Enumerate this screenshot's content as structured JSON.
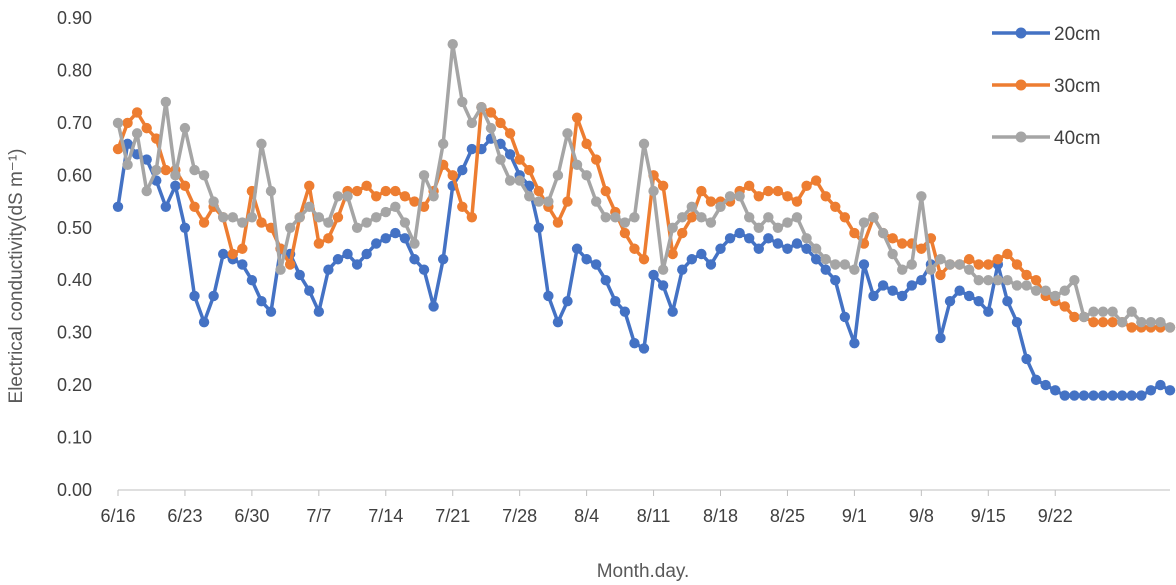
{
  "chart_data": {
    "type": "line",
    "xlabel": "Month.day.",
    "ylabel": "Electrical conductivity(dS m⁻¹)",
    "ylim": [
      0,
      0.9
    ],
    "y_ticks": [
      "0.00",
      "0.10",
      "0.20",
      "0.30",
      "0.40",
      "0.50",
      "0.60",
      "0.70",
      "0.80",
      "0.90"
    ],
    "x_tick_labels": [
      "6/16",
      "6/23",
      "6/30",
      "7/7",
      "7/14",
      "7/21",
      "7/28",
      "8/4",
      "8/11",
      "8/18",
      "8/25",
      "9/1",
      "9/8",
      "9/15",
      "9/22"
    ],
    "grid": false,
    "legend_position": "top-right",
    "colors": {
      "20cm": "#4472C4",
      "30cm": "#ED7D31",
      "40cm": "#A5A5A5"
    },
    "series": [
      {
        "name": "20cm",
        "values": [
          0.54,
          0.66,
          0.64,
          0.63,
          0.59,
          0.54,
          0.58,
          0.5,
          0.37,
          0.32,
          0.37,
          0.45,
          0.44,
          0.43,
          0.4,
          0.36,
          0.34,
          0.46,
          0.45,
          0.41,
          0.38,
          0.34,
          0.42,
          0.44,
          0.45,
          0.43,
          0.45,
          0.47,
          0.48,
          0.49,
          0.48,
          0.44,
          0.42,
          0.35,
          0.44,
          0.58,
          0.61,
          0.65,
          0.65,
          0.67,
          0.66,
          0.64,
          0.6,
          0.58,
          0.5,
          0.37,
          0.32,
          0.36,
          0.46,
          0.44,
          0.43,
          0.4,
          0.36,
          0.34,
          0.28,
          0.27,
          0.41,
          0.39,
          0.34,
          0.42,
          0.44,
          0.45,
          0.43,
          0.46,
          0.48,
          0.49,
          0.48,
          0.46,
          0.48,
          0.47,
          0.46,
          0.47,
          0.46,
          0.44,
          0.42,
          0.4,
          0.33,
          0.28,
          0.43,
          0.37,
          0.39,
          0.38,
          0.37,
          0.39,
          0.4,
          0.43,
          0.29,
          0.36,
          0.38,
          0.37,
          0.36,
          0.34,
          0.43,
          0.36,
          0.32,
          0.25,
          0.21,
          0.2,
          0.19,
          0.18,
          0.18,
          0.18,
          0.18,
          0.18,
          0.18,
          0.18,
          0.18,
          0.18,
          0.19,
          0.2,
          0.19
        ]
      },
      {
        "name": "30cm",
        "values": [
          0.65,
          0.7,
          0.72,
          0.69,
          0.67,
          0.61,
          0.61,
          0.58,
          0.54,
          0.51,
          0.54,
          0.52,
          0.45,
          0.46,
          0.57,
          0.51,
          0.5,
          0.46,
          0.43,
          0.52,
          0.58,
          0.47,
          0.48,
          0.52,
          0.57,
          0.57,
          0.58,
          0.56,
          0.57,
          0.57,
          0.56,
          0.55,
          0.54,
          0.57,
          0.62,
          0.6,
          0.54,
          0.52,
          0.73,
          0.72,
          0.7,
          0.68,
          0.63,
          0.61,
          0.57,
          0.54,
          0.51,
          0.55,
          0.71,
          0.66,
          0.63,
          0.57,
          0.53,
          0.49,
          0.46,
          0.44,
          0.6,
          0.58,
          0.45,
          0.49,
          0.52,
          0.57,
          0.55,
          0.55,
          0.55,
          0.57,
          0.58,
          0.56,
          0.57,
          0.57,
          0.56,
          0.55,
          0.58,
          0.59,
          0.56,
          0.54,
          0.52,
          0.49,
          0.47,
          0.52,
          0.49,
          0.48,
          0.47,
          0.47,
          0.46,
          0.48,
          0.41,
          0.43,
          0.43,
          0.44,
          0.43,
          0.43,
          0.44,
          0.45,
          0.43,
          0.41,
          0.4,
          0.37,
          0.36,
          0.35,
          0.33,
          0.33,
          0.32,
          0.32,
          0.32,
          0.32,
          0.31,
          0.31,
          0.31,
          0.31,
          0.31
        ]
      },
      {
        "name": "40cm",
        "values": [
          0.7,
          0.62,
          0.68,
          0.57,
          0.61,
          0.74,
          0.6,
          0.69,
          0.61,
          0.6,
          0.55,
          0.52,
          0.52,
          0.51,
          0.52,
          0.66,
          0.57,
          0.42,
          0.5,
          0.52,
          0.54,
          0.52,
          0.51,
          0.56,
          0.56,
          0.5,
          0.51,
          0.52,
          0.53,
          0.54,
          0.51,
          0.47,
          0.6,
          0.56,
          0.66,
          0.85,
          0.74,
          0.7,
          0.73,
          0.69,
          0.63,
          0.59,
          0.59,
          0.56,
          0.55,
          0.55,
          0.6,
          0.68,
          0.62,
          0.6,
          0.55,
          0.52,
          0.52,
          0.51,
          0.52,
          0.66,
          0.57,
          0.42,
          0.5,
          0.52,
          0.54,
          0.52,
          0.51,
          0.54,
          0.56,
          0.56,
          0.52,
          0.5,
          0.52,
          0.5,
          0.51,
          0.52,
          0.48,
          0.46,
          0.44,
          0.43,
          0.43,
          0.42,
          0.51,
          0.52,
          0.49,
          0.45,
          0.42,
          0.43,
          0.56,
          0.42,
          0.44,
          0.43,
          0.43,
          0.42,
          0.4,
          0.4,
          0.4,
          0.4,
          0.39,
          0.39,
          0.38,
          0.38,
          0.37,
          0.38,
          0.4,
          0.33,
          0.34,
          0.34,
          0.34,
          0.32,
          0.34,
          0.32,
          0.32,
          0.32,
          0.31
        ]
      }
    ]
  }
}
